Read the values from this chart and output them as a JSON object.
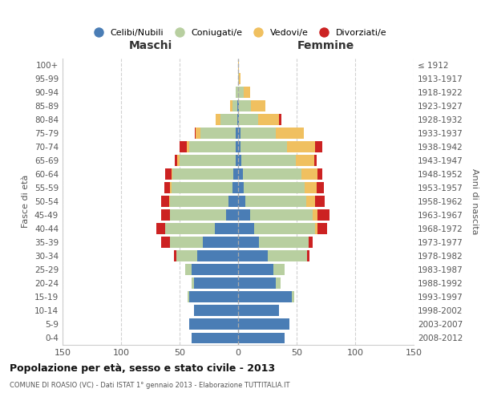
{
  "age_groups": [
    "0-4",
    "5-9",
    "10-14",
    "15-19",
    "20-24",
    "25-29",
    "30-34",
    "35-39",
    "40-44",
    "45-49",
    "50-54",
    "55-59",
    "60-64",
    "65-69",
    "70-74",
    "75-79",
    "80-84",
    "85-89",
    "90-94",
    "95-99",
    "100+"
  ],
  "birth_years": [
    "2008-2012",
    "2003-2007",
    "1998-2002",
    "1993-1997",
    "1988-1992",
    "1983-1987",
    "1978-1982",
    "1973-1977",
    "1968-1972",
    "1963-1967",
    "1958-1962",
    "1953-1957",
    "1948-1952",
    "1943-1947",
    "1938-1942",
    "1933-1937",
    "1928-1932",
    "1923-1927",
    "1918-1922",
    "1913-1917",
    "≤ 1912"
  ],
  "males": {
    "celibi": [
      40,
      42,
      38,
      42,
      38,
      40,
      35,
      30,
      20,
      10,
      8,
      5,
      4,
      2,
      2,
      2,
      1,
      1,
      0,
      0,
      0
    ],
    "coniugati": [
      0,
      0,
      0,
      1,
      2,
      5,
      18,
      28,
      42,
      48,
      50,
      52,
      52,
      48,
      40,
      30,
      14,
      4,
      2,
      0,
      0
    ],
    "vedovi": [
      0,
      0,
      0,
      0,
      0,
      0,
      0,
      0,
      0,
      0,
      1,
      1,
      1,
      2,
      2,
      4,
      4,
      2,
      0,
      0,
      0
    ],
    "divorziati": [
      0,
      0,
      0,
      0,
      0,
      0,
      2,
      8,
      8,
      8,
      7,
      5,
      5,
      2,
      6,
      1,
      0,
      0,
      0,
      0,
      0
    ]
  },
  "females": {
    "nubili": [
      40,
      44,
      35,
      46,
      32,
      30,
      25,
      18,
      14,
      10,
      6,
      5,
      4,
      3,
      2,
      2,
      1,
      1,
      0,
      0,
      0
    ],
    "coniugate": [
      0,
      0,
      0,
      2,
      4,
      10,
      34,
      42,
      52,
      54,
      52,
      52,
      50,
      46,
      40,
      30,
      16,
      10,
      5,
      1,
      0
    ],
    "vedove": [
      0,
      0,
      0,
      0,
      0,
      0,
      0,
      0,
      2,
      4,
      8,
      10,
      14,
      16,
      24,
      24,
      18,
      12,
      5,
      1,
      1
    ],
    "divorziate": [
      0,
      0,
      0,
      0,
      0,
      0,
      2,
      4,
      8,
      10,
      8,
      6,
      4,
      2,
      6,
      0,
      2,
      0,
      0,
      0,
      0
    ]
  },
  "colors": {
    "celibi": "#4a7db5",
    "coniugati": "#b8cfa0",
    "vedovi": "#f0c060",
    "divorziati": "#cc2222"
  },
  "xlim": 150,
  "title": "Popolazione per età, sesso e stato civile - 2013",
  "subtitle": "COMUNE DI ROASIO (VC) - Dati ISTAT 1° gennaio 2013 - Elaborazione TUTTITALIA.IT",
  "ylabel_left": "Fasce di età",
  "ylabel_right": "Anni di nascita",
  "xlabel_left": "Maschi",
  "xlabel_right": "Femmine",
  "legend_labels": [
    "Celibi/Nubili",
    "Coniugati/e",
    "Vedovi/e",
    "Divorziati/e"
  ],
  "background_color": "#ffffff",
  "grid_color": "#cccccc"
}
